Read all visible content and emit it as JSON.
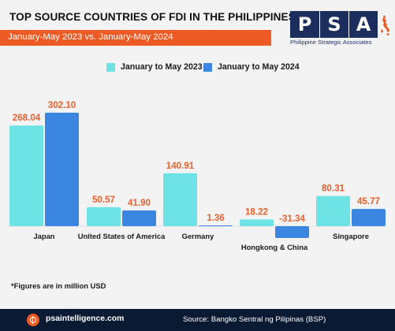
{
  "header": {
    "title": "TOP SOURCE COUNTRIES OF FDI IN THE PHILIPPINES",
    "subtitle": "January-May 2023 vs. January-May 2024"
  },
  "logo": {
    "letters": [
      "P",
      "S",
      "A"
    ],
    "name": "Philippine Strategic Associates"
  },
  "colors": {
    "series_2023": "#6ee3e6",
    "series_2024": "#3a86e0",
    "value_label": "#e8602c",
    "accent": "#ee5a24",
    "footer_bg": "#0b1a33"
  },
  "chart_data": {
    "type": "bar",
    "title": "TOP SOURCE COUNTRIES OF FDI IN THE PHILIPPINES",
    "subtitle": "January-May 2023 vs. January-May 2024",
    "xlabel": "",
    "ylabel": "",
    "unit_note": "*Figures are in million USD",
    "legend_position": "top-center",
    "grid": false,
    "categories": [
      "Japan",
      "United States of America",
      "Germany",
      "Hongkong & China",
      "Singapore"
    ],
    "series": [
      {
        "name": "January to May 2023",
        "values": [
          268.04,
          50.57,
          140.91,
          18.22,
          80.31
        ],
        "labels": [
          "268.04",
          "50.57",
          "140.91",
          "18.22",
          "80.31"
        ]
      },
      {
        "name": "January to May 2024",
        "values": [
          302.1,
          41.9,
          1.36,
          -31.34,
          45.77
        ],
        "labels": [
          "302.10",
          "41.90",
          "1.36",
          "-31.34",
          "45.77"
        ]
      }
    ],
    "ylim": [
      -31.34,
      302.1
    ]
  },
  "footnote": "*Figures are in million USD",
  "footer": {
    "website": "psaintelligence.com",
    "source": "Source: Bangko Sentral ng Pilipinas (BSP)"
  }
}
